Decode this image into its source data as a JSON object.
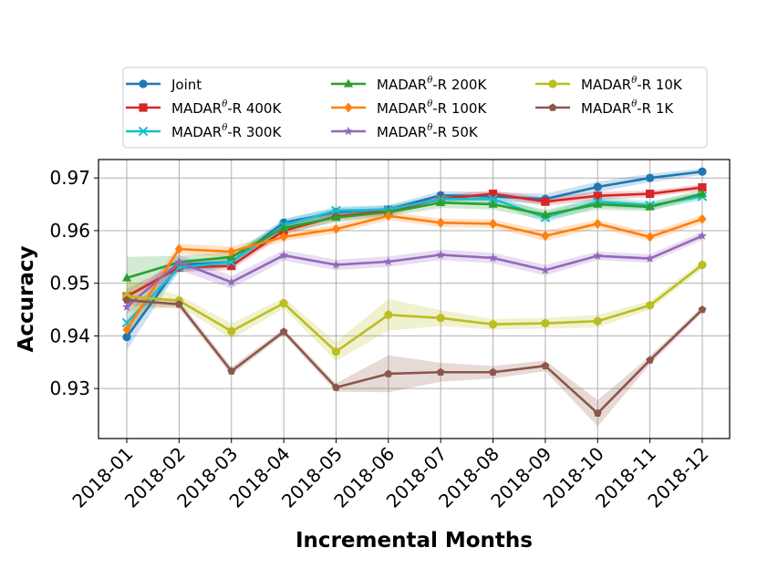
{
  "chart_data": {
    "type": "line",
    "title": "",
    "xlabel": "Incremental Months",
    "ylabel": "Accuracy",
    "categories": [
      "2018-01",
      "2018-02",
      "2018-03",
      "2018-04",
      "2018-05",
      "2018-06",
      "2018-07",
      "2018-08",
      "2018-09",
      "2018-10",
      "2018-11",
      "2018-12"
    ],
    "ylim": [
      0.9205,
      0.9735
    ],
    "yticks": [
      0.93,
      0.94,
      0.95,
      0.96,
      0.97
    ],
    "ytick_labels": [
      "0.93",
      "0.94",
      "0.95",
      "0.96",
      "0.97"
    ],
    "grid": true,
    "legend_position": "top-center",
    "series": [
      {
        "name": "Joint",
        "base": "Joint",
        "sup": "",
        "suffix": "",
        "color": "#1f77b4",
        "marker": "circle",
        "values": [
          0.9398,
          0.9535,
          0.954,
          0.9615,
          0.9635,
          0.964,
          0.9667,
          0.9665,
          0.966,
          0.9683,
          0.97,
          0.9712
        ],
        "band": [
          0.0025,
          0.001,
          0.001,
          0.0008,
          0.0008,
          0.0008,
          0.0008,
          0.0008,
          0.001,
          0.001,
          0.0008,
          0.0006
        ]
      },
      {
        "name": "MADARθ-R 400K",
        "base": "MADAR",
        "sup": "θ",
        "suffix": "-R 400K",
        "color": "#d62728",
        "marker": "square",
        "values": [
          0.9475,
          0.953,
          0.9533,
          0.96,
          0.9627,
          0.9637,
          0.966,
          0.967,
          0.9655,
          0.9666,
          0.967,
          0.9682
        ],
        "band": [
          0.0015,
          0.0008,
          0.0008,
          0.0008,
          0.0008,
          0.0008,
          0.0008,
          0.0006,
          0.0008,
          0.0008,
          0.0006,
          0.0006
        ]
      },
      {
        "name": "MADARθ-R 300K",
        "base": "MADAR",
        "sup": "θ",
        "suffix": "-R 300K",
        "color": "#17becf",
        "marker": "x",
        "values": [
          0.9425,
          0.953,
          0.954,
          0.961,
          0.9638,
          0.964,
          0.966,
          0.966,
          0.9625,
          0.9655,
          0.9648,
          0.9665
        ],
        "band": [
          0.002,
          0.001,
          0.001,
          0.001,
          0.0008,
          0.0008,
          0.0008,
          0.0008,
          0.001,
          0.001,
          0.0008,
          0.0008
        ]
      },
      {
        "name": "MADARθ-R 200K",
        "base": "MADAR",
        "sup": "θ",
        "suffix": "-R 200K",
        "color": "#2ca02c",
        "marker": "triangle",
        "values": [
          0.951,
          0.954,
          0.955,
          0.9605,
          0.9625,
          0.9635,
          0.9653,
          0.965,
          0.963,
          0.965,
          0.9645,
          0.967
        ],
        "band": [
          0.004,
          0.0012,
          0.001,
          0.001,
          0.001,
          0.0008,
          0.001,
          0.001,
          0.001,
          0.001,
          0.0008,
          0.0008
        ]
      },
      {
        "name": "MADARθ-R 100K",
        "base": "MADAR",
        "sup": "θ",
        "suffix": "-R 100K",
        "color": "#ff7f0e",
        "marker": "diamond",
        "values": [
          0.9412,
          0.9565,
          0.956,
          0.9588,
          0.9603,
          0.9628,
          0.9615,
          0.9613,
          0.959,
          0.9613,
          0.9588,
          0.9622
        ],
        "band": [
          0.002,
          0.001,
          0.001,
          0.0008,
          0.0008,
          0.0008,
          0.0008,
          0.0008,
          0.001,
          0.0008,
          0.0008,
          0.0008
        ]
      },
      {
        "name": "MADARθ-R 50K",
        "base": "MADAR",
        "sup": "θ",
        "suffix": "-R 50K",
        "color": "#9467bd",
        "marker": "star",
        "values": [
          0.9455,
          0.954,
          0.9502,
          0.9553,
          0.9535,
          0.9541,
          0.9554,
          0.9548,
          0.9525,
          0.9552,
          0.9547,
          0.959
        ],
        "band": [
          0.0015,
          0.0015,
          0.0012,
          0.001,
          0.001,
          0.001,
          0.001,
          0.001,
          0.001,
          0.0008,
          0.0008,
          0.0008
        ]
      },
      {
        "name": "MADARθ-R 10K",
        "base": "MADAR",
        "sup": "θ",
        "suffix": "-R 10K",
        "color": "#bcbd22",
        "marker": "circle",
        "values": [
          0.9475,
          0.9467,
          0.9409,
          0.9462,
          0.937,
          0.944,
          0.9434,
          0.9422,
          0.9424,
          0.9428,
          0.9458,
          0.9535
        ],
        "band": [
          0.003,
          0.001,
          0.0015,
          0.001,
          0.0018,
          0.003,
          0.0015,
          0.001,
          0.001,
          0.0012,
          0.0008,
          0.0008
        ]
      },
      {
        "name": "MADARθ-R 1K",
        "base": "MADAR",
        "sup": "θ",
        "suffix": "-R 1K",
        "color": "#8c564b",
        "marker": "pentagon",
        "values": [
          0.9468,
          0.946,
          0.9333,
          0.9408,
          0.9302,
          0.9328,
          0.9331,
          0.9331,
          0.9343,
          0.9253,
          0.9354,
          0.945
        ],
        "band": [
          0.001,
          0.0008,
          0.0008,
          0.0006,
          0.0008,
          0.0035,
          0.0018,
          0.0012,
          0.001,
          0.0025,
          0.0008,
          0.0006
        ]
      }
    ]
  }
}
